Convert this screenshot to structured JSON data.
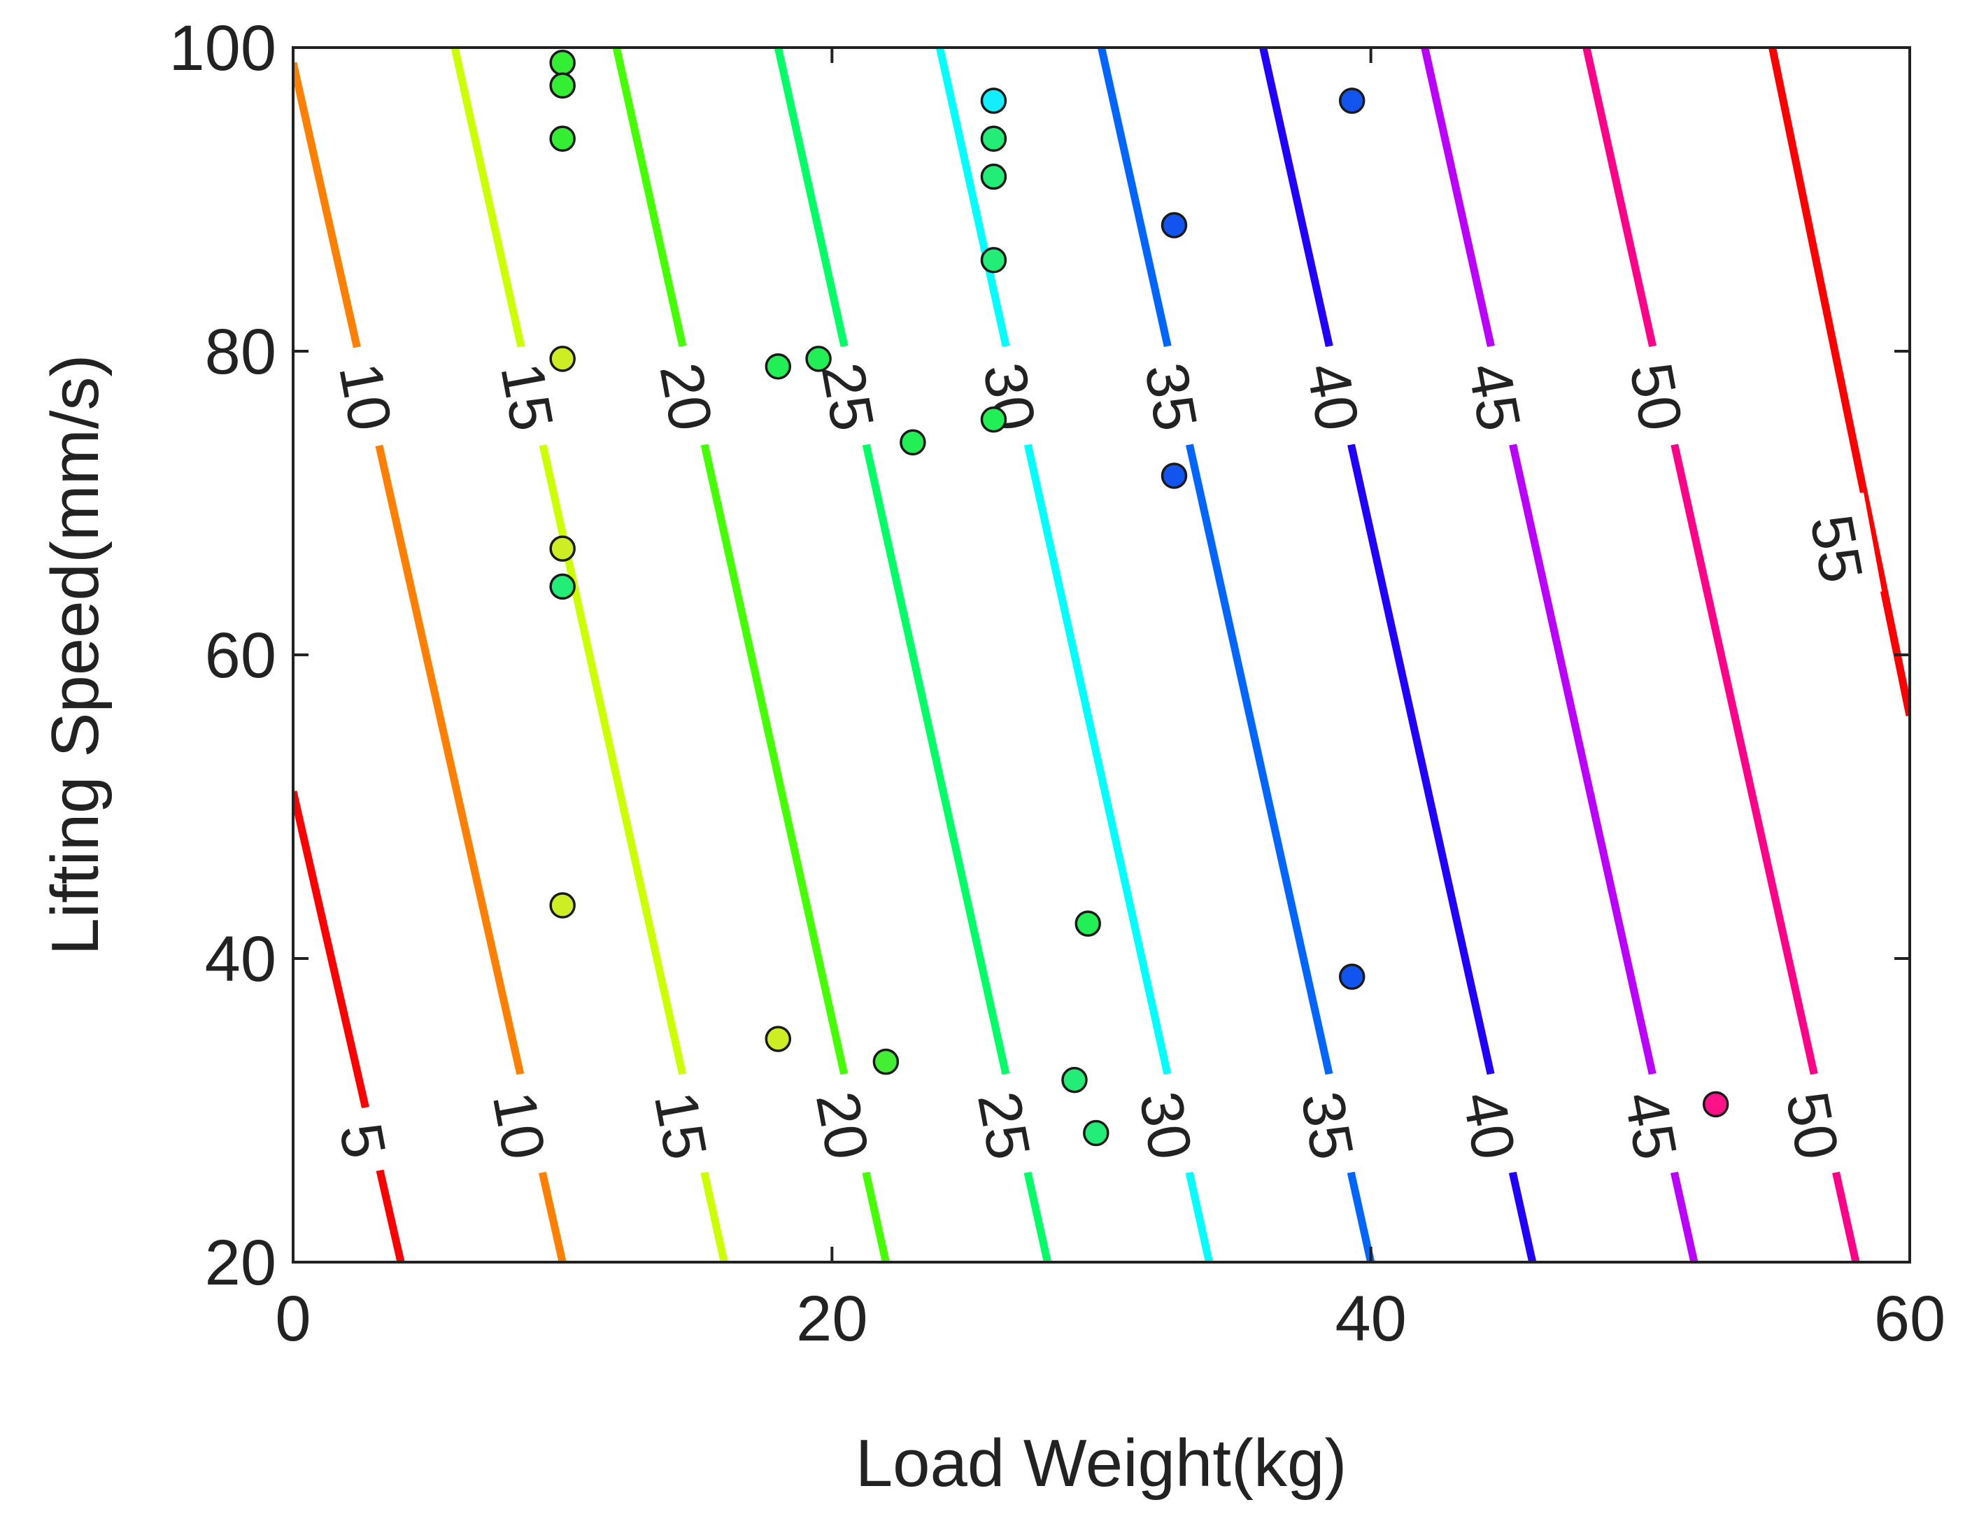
{
  "chart_data": {
    "type": "contour",
    "title": "",
    "xlabel": "Load Weight(kg)",
    "ylabel": "Lifting Speed(mm/s)",
    "xlim": [
      0,
      60
    ],
    "ylim": [
      20,
      100
    ],
    "xticks": [
      0,
      20,
      40,
      60
    ],
    "yticks": [
      20,
      40,
      60,
      80,
      100
    ],
    "xtick_labels": [
      "0",
      "20",
      "40",
      "60"
    ],
    "ytick_labels": [
      "20",
      "40",
      "60",
      "80",
      "100"
    ],
    "grid": false,
    "legend": "none",
    "contour_levels": [
      {
        "level": 5,
        "label": "5",
        "color": "#ff0000",
        "ends": [
          [
            0,
            51
          ],
          [
            4,
            20
          ]
        ]
      },
      {
        "level": 10,
        "label": "10",
        "color": "#ff8000",
        "ends": [
          [
            0,
            99
          ],
          [
            10,
            20
          ]
        ]
      },
      {
        "level": 15,
        "label": "15",
        "color": "#ccff00",
        "ends": [
          [
            6,
            100
          ],
          [
            16,
            20
          ]
        ]
      },
      {
        "level": 20,
        "label": "20",
        "color": "#44ff00",
        "ends": [
          [
            12,
            100
          ],
          [
            22,
            20
          ]
        ]
      },
      {
        "level": 25,
        "label": "25",
        "color": "#00ff66",
        "ends": [
          [
            18,
            100
          ],
          [
            28,
            20
          ]
        ]
      },
      {
        "level": 30,
        "label": "30",
        "color": "#00ffff",
        "ends": [
          [
            24,
            100
          ],
          [
            34,
            20
          ]
        ]
      },
      {
        "level": 35,
        "label": "35",
        "color": "#0066ff",
        "ends": [
          [
            30,
            100
          ],
          [
            40,
            20
          ]
        ]
      },
      {
        "level": 40,
        "label": "40",
        "color": "#2200ff",
        "ends": [
          [
            36,
            100
          ],
          [
            46,
            20
          ]
        ]
      },
      {
        "level": 45,
        "label": "45",
        "color": "#bb00ff",
        "ends": [
          [
            42,
            100
          ],
          [
            52,
            20
          ]
        ]
      },
      {
        "level": 50,
        "label": "50",
        "color": "#ff0088",
        "ends": [
          [
            48,
            100
          ],
          [
            58,
            20
          ]
        ]
      },
      {
        "level": 55,
        "label": "55",
        "color": "#ff0000",
        "ends": [
          [
            54.9,
            100
          ],
          [
            60,
            56
          ]
        ]
      }
    ],
    "contour_labels": [
      {
        "text": "10",
        "x": 2.7,
        "y": 77
      },
      {
        "text": "15",
        "x": 8.7,
        "y": 77
      },
      {
        "text": "20",
        "x": 14.6,
        "y": 77
      },
      {
        "text": "25",
        "x": 20.6,
        "y": 77
      },
      {
        "text": "30",
        "x": 26.6,
        "y": 77
      },
      {
        "text": "35",
        "x": 32.6,
        "y": 77
      },
      {
        "text": "40",
        "x": 38.6,
        "y": 77
      },
      {
        "text": "45",
        "x": 44.6,
        "y": 77
      },
      {
        "text": "50",
        "x": 50.6,
        "y": 77
      },
      {
        "text": "55",
        "x": 57.3,
        "y": 67
      },
      {
        "text": "5",
        "x": 2.6,
        "y": 28
      },
      {
        "text": "10",
        "x": 8.4,
        "y": 29
      },
      {
        "text": "15",
        "x": 14.4,
        "y": 29
      },
      {
        "text": "20",
        "x": 20.4,
        "y": 29
      },
      {
        "text": "25",
        "x": 26.4,
        "y": 29
      },
      {
        "text": "30",
        "x": 32.4,
        "y": 29
      },
      {
        "text": "35",
        "x": 38.4,
        "y": 29
      },
      {
        "text": "40",
        "x": 44.4,
        "y": 29
      },
      {
        "text": "45",
        "x": 50.4,
        "y": 29
      },
      {
        "text": "50",
        "x": 56.4,
        "y": 29
      }
    ],
    "points": [
      {
        "x": 10,
        "y": 99,
        "color": "#33ee33"
      },
      {
        "x": 10,
        "y": 97.5,
        "color": "#33ee33"
      },
      {
        "x": 10,
        "y": 94,
        "color": "#33ee33"
      },
      {
        "x": 26,
        "y": 96.5,
        "color": "#11eeff"
      },
      {
        "x": 26,
        "y": 94,
        "color": "#22ee77"
      },
      {
        "x": 26,
        "y": 91.5,
        "color": "#22ee77"
      },
      {
        "x": 26,
        "y": 86,
        "color": "#22ee77"
      },
      {
        "x": 39.3,
        "y": 96.5,
        "color": "#1155ee"
      },
      {
        "x": 32.7,
        "y": 88.3,
        "color": "#1155ee"
      },
      {
        "x": 10,
        "y": 79.5,
        "color": "#ccee22"
      },
      {
        "x": 18,
        "y": 79,
        "color": "#22ee55"
      },
      {
        "x": 19.5,
        "y": 79.5,
        "color": "#22ee55"
      },
      {
        "x": 23,
        "y": 74,
        "color": "#22ee55"
      },
      {
        "x": 26,
        "y": 75.5,
        "color": "#22ee55"
      },
      {
        "x": 32.7,
        "y": 71.8,
        "color": "#1155ee"
      },
      {
        "x": 10,
        "y": 67,
        "color": "#ccee22"
      },
      {
        "x": 10,
        "y": 64.5,
        "color": "#22ee77"
      },
      {
        "x": 10,
        "y": 43.5,
        "color": "#ccee22"
      },
      {
        "x": 29.5,
        "y": 42.3,
        "color": "#22ee55"
      },
      {
        "x": 39.3,
        "y": 38.8,
        "color": "#1155ee"
      },
      {
        "x": 18,
        "y": 34.7,
        "color": "#ccee22"
      },
      {
        "x": 22,
        "y": 33.2,
        "color": "#44ee33"
      },
      {
        "x": 29,
        "y": 32,
        "color": "#22ee77"
      },
      {
        "x": 29.8,
        "y": 28.5,
        "color": "#22ee77"
      },
      {
        "x": 52.8,
        "y": 30.4,
        "color": "#ff1188"
      }
    ]
  }
}
